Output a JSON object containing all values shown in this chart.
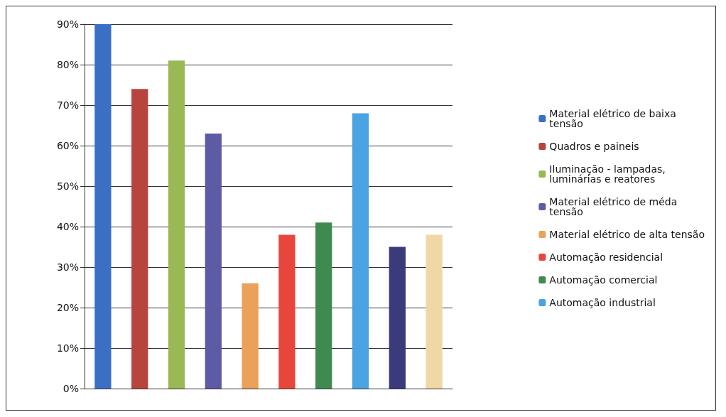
{
  "chart_data": {
    "type": "bar",
    "categories": [
      null,
      null,
      null,
      null,
      null,
      null,
      null,
      null,
      null,
      null
    ],
    "series": [
      {
        "name": "Material elétrico de baixa tensão",
        "color": "#3a6fc4",
        "values": [
          90,
          null,
          null,
          null,
          null,
          null,
          null,
          null,
          null,
          null
        ]
      },
      {
        "name": "Quadros e paineis",
        "color": "#b8443e",
        "values": [
          null,
          74,
          null,
          null,
          null,
          null,
          null,
          null,
          null,
          null
        ]
      },
      {
        "name": "Iluminação - lampadas, luminárias e reatores",
        "color": "#98b954",
        "values": [
          null,
          null,
          81,
          null,
          null,
          null,
          null,
          null,
          null,
          null
        ]
      },
      {
        "name": "Material elétrico de méda tensão",
        "color": "#5d5aa6",
        "values": [
          null,
          null,
          null,
          63,
          null,
          null,
          null,
          null,
          null,
          null
        ]
      },
      {
        "name": "Material elétrico de alta tensão",
        "color": "#eba15a",
        "values": [
          null,
          null,
          null,
          null,
          26,
          null,
          null,
          null,
          null,
          null
        ]
      },
      {
        "name": "Automação residencial",
        "color": "#e8463c",
        "values": [
          null,
          null,
          null,
          null,
          null,
          38,
          null,
          null,
          null,
          null
        ]
      },
      {
        "name": "Automação comercial",
        "color": "#3f8a50",
        "values": [
          null,
          null,
          null,
          null,
          null,
          null,
          41,
          null,
          null,
          null
        ]
      },
      {
        "name": "Automação industrial",
        "color": "#4aa3e2",
        "values": [
          null,
          null,
          null,
          null,
          null,
          null,
          null,
          68,
          null,
          null
        ]
      },
      {
        "color": "#3b3a7a",
        "values": [
          null,
          null,
          null,
          null,
          null,
          null,
          null,
          null,
          35,
          null
        ]
      },
      {
        "color": "#f0d8a4",
        "values": [
          null,
          null,
          null,
          null,
          null,
          null,
          null,
          null,
          null,
          38
        ]
      }
    ],
    "ylim": [
      0,
      90
    ],
    "yticks": [
      {
        "value": 0,
        "label": "0%"
      },
      {
        "value": 10,
        "label": "10%"
      },
      {
        "value": 20,
        "label": "20%"
      },
      {
        "value": 30,
        "label": "30%"
      },
      {
        "value": 40,
        "label": "40%"
      },
      {
        "value": 50,
        "label": "50%"
      },
      {
        "value": 60,
        "label": "60%"
      },
      {
        "value": 70,
        "label": "70%"
      },
      {
        "value": 80,
        "label": "80%"
      },
      {
        "value": 90,
        "label": "90%"
      }
    ],
    "grid": "y",
    "legend": "right"
  }
}
